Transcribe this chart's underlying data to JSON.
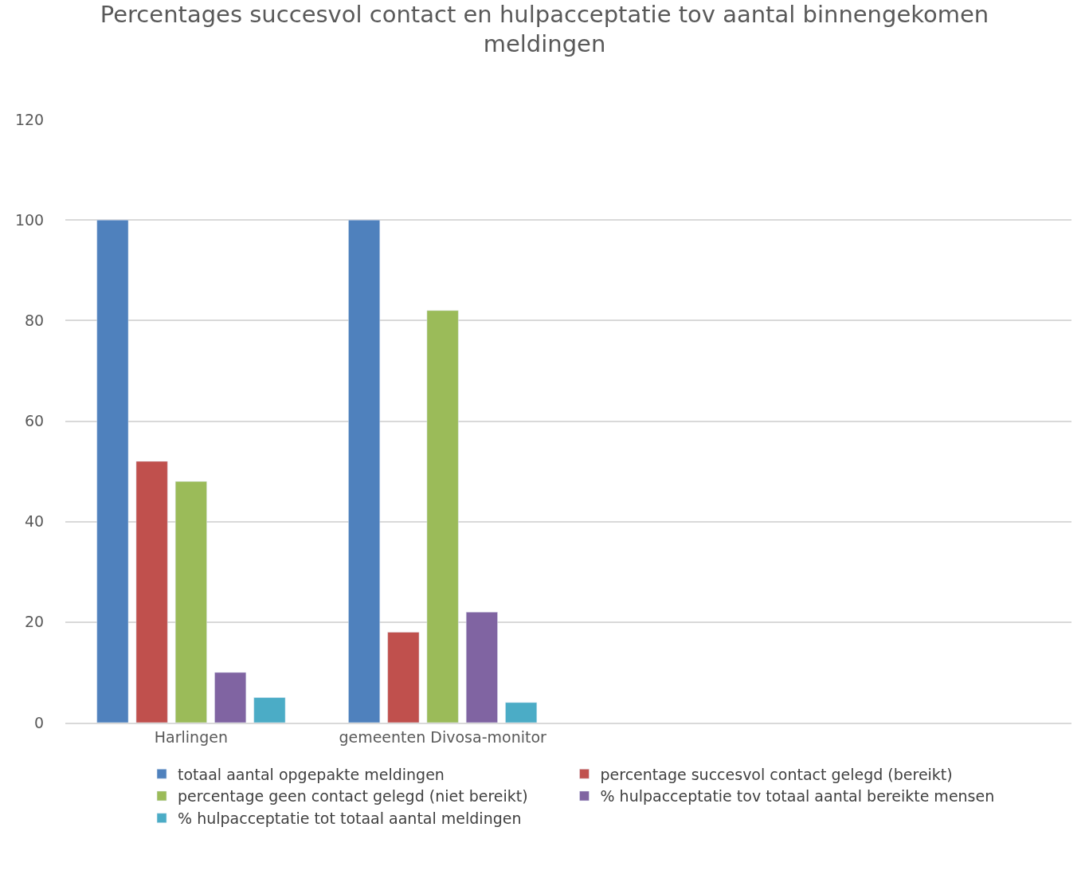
{
  "chart_data": {
    "type": "bar",
    "title": "Percentages succesvol contact en hulpacceptatie tov aantal binnengekomen meldingen",
    "categories": [
      "Harlingen",
      "gemeenten Divosa-monitor",
      null,
      null
    ],
    "series": [
      {
        "name": "totaal aantal opgepakte meldingen",
        "color": "#4f81bd",
        "values": [
          100,
          100,
          null,
          null
        ]
      },
      {
        "name": "percentage succesvol contact gelegd (bereikt)",
        "color": "#c0504d",
        "values": [
          52,
          18,
          null,
          null
        ]
      },
      {
        "name": "percentage geen contact gelegd (niet bereikt)",
        "color": "#9bbb59",
        "values": [
          48,
          82,
          null,
          null
        ]
      },
      {
        "name": "% hulpacceptatie tov totaal aantal bereikte mensen",
        "color": "#8064a2",
        "values": [
          10,
          22,
          null,
          null
        ]
      },
      {
        "name": "% hulpacceptatie tot totaal aantal meldingen",
        "color": "#4bacc6",
        "values": [
          5,
          4,
          null,
          null
        ]
      }
    ],
    "ylim": [
      0,
      120
    ],
    "yticks": [
      0,
      20,
      40,
      60,
      80,
      100,
      120
    ],
    "grid": "y",
    "legend": "bottom"
  }
}
